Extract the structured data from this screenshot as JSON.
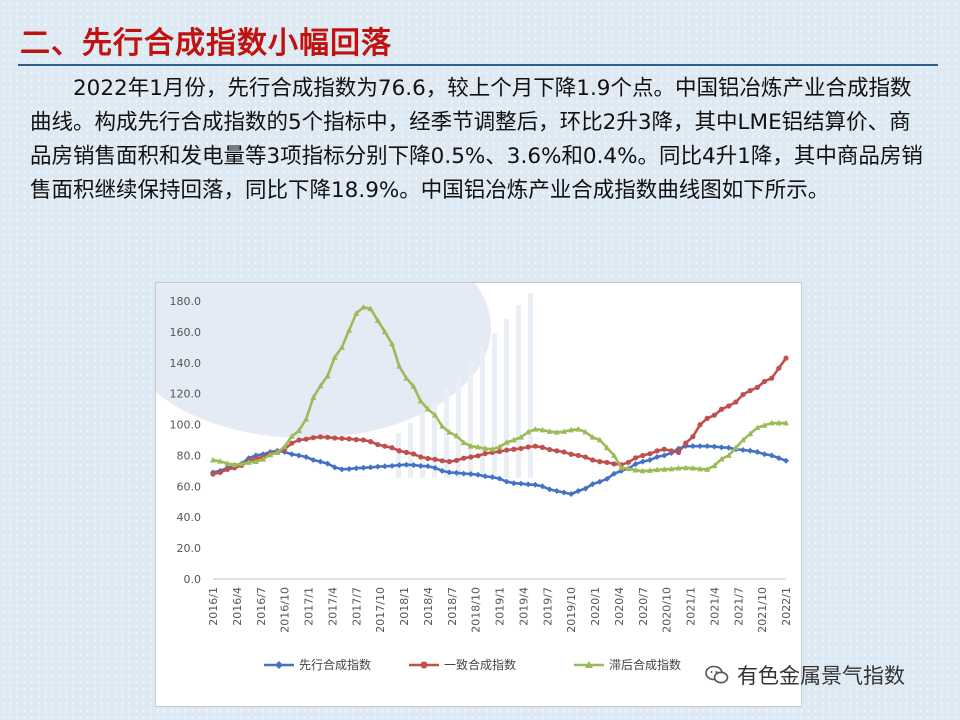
{
  "header": {
    "title": "二、先行合成指数小幅回落"
  },
  "paragraph": "2022年1月份，先行合成指数为76.6，较上个月下降1.9个点。中国铝冶炼产业合成指数曲线。构成先行合成指数的5个指标中，经季节调整后，环比2升3降，其中LME铝结算价、商品房销售面积和发电量等3项指标分别下降0.5%、3.6%和0.4%。同比4升1降，其中商品房销售面积继续保持回落，同比下降18.9%。中国铝冶炼产业合成指数曲线图如下所示。",
  "watermark": {
    "text": "有色金属景气指数",
    "icon": "wechat-icon"
  },
  "chart_data": {
    "type": "line",
    "y_ticks": [
      "0.0",
      "20.0",
      "40.0",
      "60.0",
      "80.0",
      "100.0",
      "120.0",
      "140.0",
      "160.0",
      "180.0"
    ],
    "ylim": [
      0,
      180
    ],
    "x_tick_labels": [
      "2016/1",
      "2016/4",
      "2016/7",
      "2016/10",
      "2017/1",
      "2017/4",
      "2017/7",
      "2017/10",
      "2018/1",
      "2018/4",
      "2018/7",
      "2018/10",
      "2019/1",
      "2019/4",
      "2019/7",
      "2019/10",
      "2020/1",
      "2020/4",
      "2020/7",
      "2020/10",
      "2021/1",
      "2021/4",
      "2021/7",
      "2021/10",
      "2022/1"
    ],
    "x_start": "2016/1",
    "x_end": "2022/1",
    "grid": false,
    "legend_position": "bottom",
    "series": [
      {
        "name": "先行合成指数",
        "color": "#4472c4",
        "marker": "diamond",
        "anchors": [
          [
            0,
            69
          ],
          [
            3,
            73
          ],
          [
            6,
            80
          ],
          [
            9,
            83
          ],
          [
            12,
            80
          ],
          [
            15,
            76
          ],
          [
            18,
            71
          ],
          [
            21,
            72
          ],
          [
            24,
            73
          ],
          [
            27,
            74
          ],
          [
            30,
            73
          ],
          [
            33,
            69
          ],
          [
            36,
            68
          ],
          [
            39,
            66
          ],
          [
            42,
            62
          ],
          [
            45,
            61
          ],
          [
            48,
            57
          ],
          [
            50,
            55
          ],
          [
            51,
            57
          ],
          [
            54,
            63
          ],
          [
            57,
            70
          ],
          [
            60,
            76
          ],
          [
            63,
            80
          ],
          [
            66,
            86
          ],
          [
            69,
            86
          ],
          [
            72,
            85
          ],
          [
            73,
            84
          ],
          [
            75,
            83
          ],
          [
            78,
            80
          ],
          [
            80,
            76.6
          ]
        ]
      },
      {
        "name": "一致合成指数",
        "color": "#c0504d",
        "marker": "circle",
        "anchors": [
          [
            0,
            68
          ],
          [
            3,
            72
          ],
          [
            6,
            78
          ],
          [
            9,
            82
          ],
          [
            12,
            90
          ],
          [
            15,
            92
          ],
          [
            18,
            91
          ],
          [
            21,
            90
          ],
          [
            24,
            86
          ],
          [
            27,
            82
          ],
          [
            30,
            78
          ],
          [
            33,
            76
          ],
          [
            36,
            79
          ],
          [
            39,
            82
          ],
          [
            42,
            84
          ],
          [
            45,
            86
          ],
          [
            48,
            83
          ],
          [
            51,
            80
          ],
          [
            54,
            76
          ],
          [
            57,
            74
          ],
          [
            60,
            80
          ],
          [
            63,
            84
          ],
          [
            65,
            82
          ],
          [
            66,
            88
          ],
          [
            69,
            104
          ],
          [
            72,
            112
          ],
          [
            75,
            122
          ],
          [
            78,
            130
          ],
          [
            80,
            143
          ]
        ]
      },
      {
        "name": "滞后合成指数",
        "color": "#9bbb59",
        "marker": "triangle",
        "anchors": [
          [
            0,
            77
          ],
          [
            3,
            74
          ],
          [
            6,
            76
          ],
          [
            9,
            82
          ],
          [
            12,
            96
          ],
          [
            15,
            125
          ],
          [
            18,
            150
          ],
          [
            20,
            172
          ],
          [
            21,
            176
          ],
          [
            22,
            175
          ],
          [
            24,
            160
          ],
          [
            27,
            130
          ],
          [
            30,
            110
          ],
          [
            33,
            95
          ],
          [
            36,
            86
          ],
          [
            39,
            84
          ],
          [
            42,
            90
          ],
          [
            45,
            97
          ],
          [
            48,
            95
          ],
          [
            51,
            97
          ],
          [
            54,
            90
          ],
          [
            56,
            80
          ],
          [
            57,
            72
          ],
          [
            60,
            70
          ],
          [
            63,
            71
          ],
          [
            66,
            72
          ],
          [
            69,
            71
          ],
          [
            72,
            80
          ],
          [
            74,
            90
          ],
          [
            76,
            98
          ],
          [
            78,
            101
          ],
          [
            80,
            101
          ]
        ]
      }
    ]
  }
}
